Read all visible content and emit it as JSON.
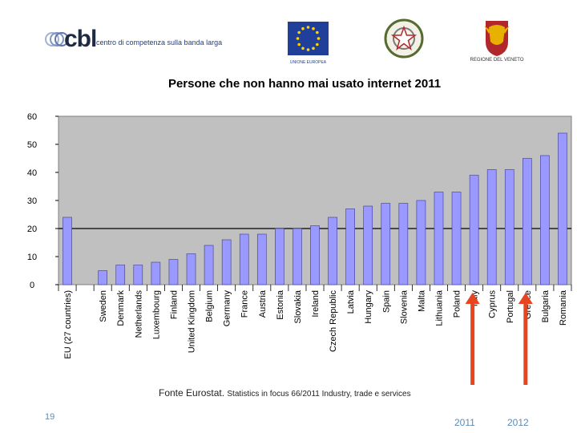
{
  "logos": {
    "cbl_mark": "cbl",
    "cbl_tagline": "centro di competenza sulla banda larga",
    "eu_caption": "UNIONE EUROPEA",
    "veneto_caption": "REGIONE DEL VENETO"
  },
  "colors": {
    "bar": "#9999FF",
    "bar_edge": "#3b3b8f",
    "plot_bg": "#C0C0C0",
    "arrow": "#E8441F",
    "year_text": "#5b8bb5"
  },
  "chart_data": {
    "type": "bar",
    "title": "Persone che non hanno mai usato internet 2011",
    "categories": [
      "EU (27 countries)",
      "",
      "Sweden",
      "Denmark",
      "Netherlands",
      "Luxembourg",
      "Finland",
      "United Kingdom",
      "Belgium",
      "Germany",
      "France",
      "Austria",
      "Estonia",
      "Slovakia",
      "Ireland",
      "Czech Republic",
      "Latvia",
      "Hungary",
      "Spain",
      "Slovenia",
      "Malta",
      "Lithuania",
      "Poland",
      "Italy",
      "Cyprus",
      "Portugal",
      "Greece",
      "Bulgaria",
      "Romania"
    ],
    "values": [
      24,
      null,
      5,
      7,
      7,
      8,
      9,
      11,
      14,
      16,
      18,
      18,
      20,
      20,
      21,
      24,
      27,
      28,
      29,
      29,
      30,
      33,
      33,
      39,
      41,
      41,
      45,
      46,
      54
    ],
    "ylim": [
      0,
      60
    ],
    "yticks": [
      0,
      10,
      20,
      30,
      40,
      50,
      60
    ],
    "reference_line": 20,
    "grid": false,
    "legend": "none"
  },
  "source": {
    "main": "Fonte Eurostat.",
    "detail": "Statistics in focus 66/2011 Industry, trade e services"
  },
  "slide_number": "19",
  "annotations": [
    {
      "label": "2011",
      "points_to": "Italy"
    },
    {
      "label": "2012",
      "points_to": "Greece"
    }
  ]
}
